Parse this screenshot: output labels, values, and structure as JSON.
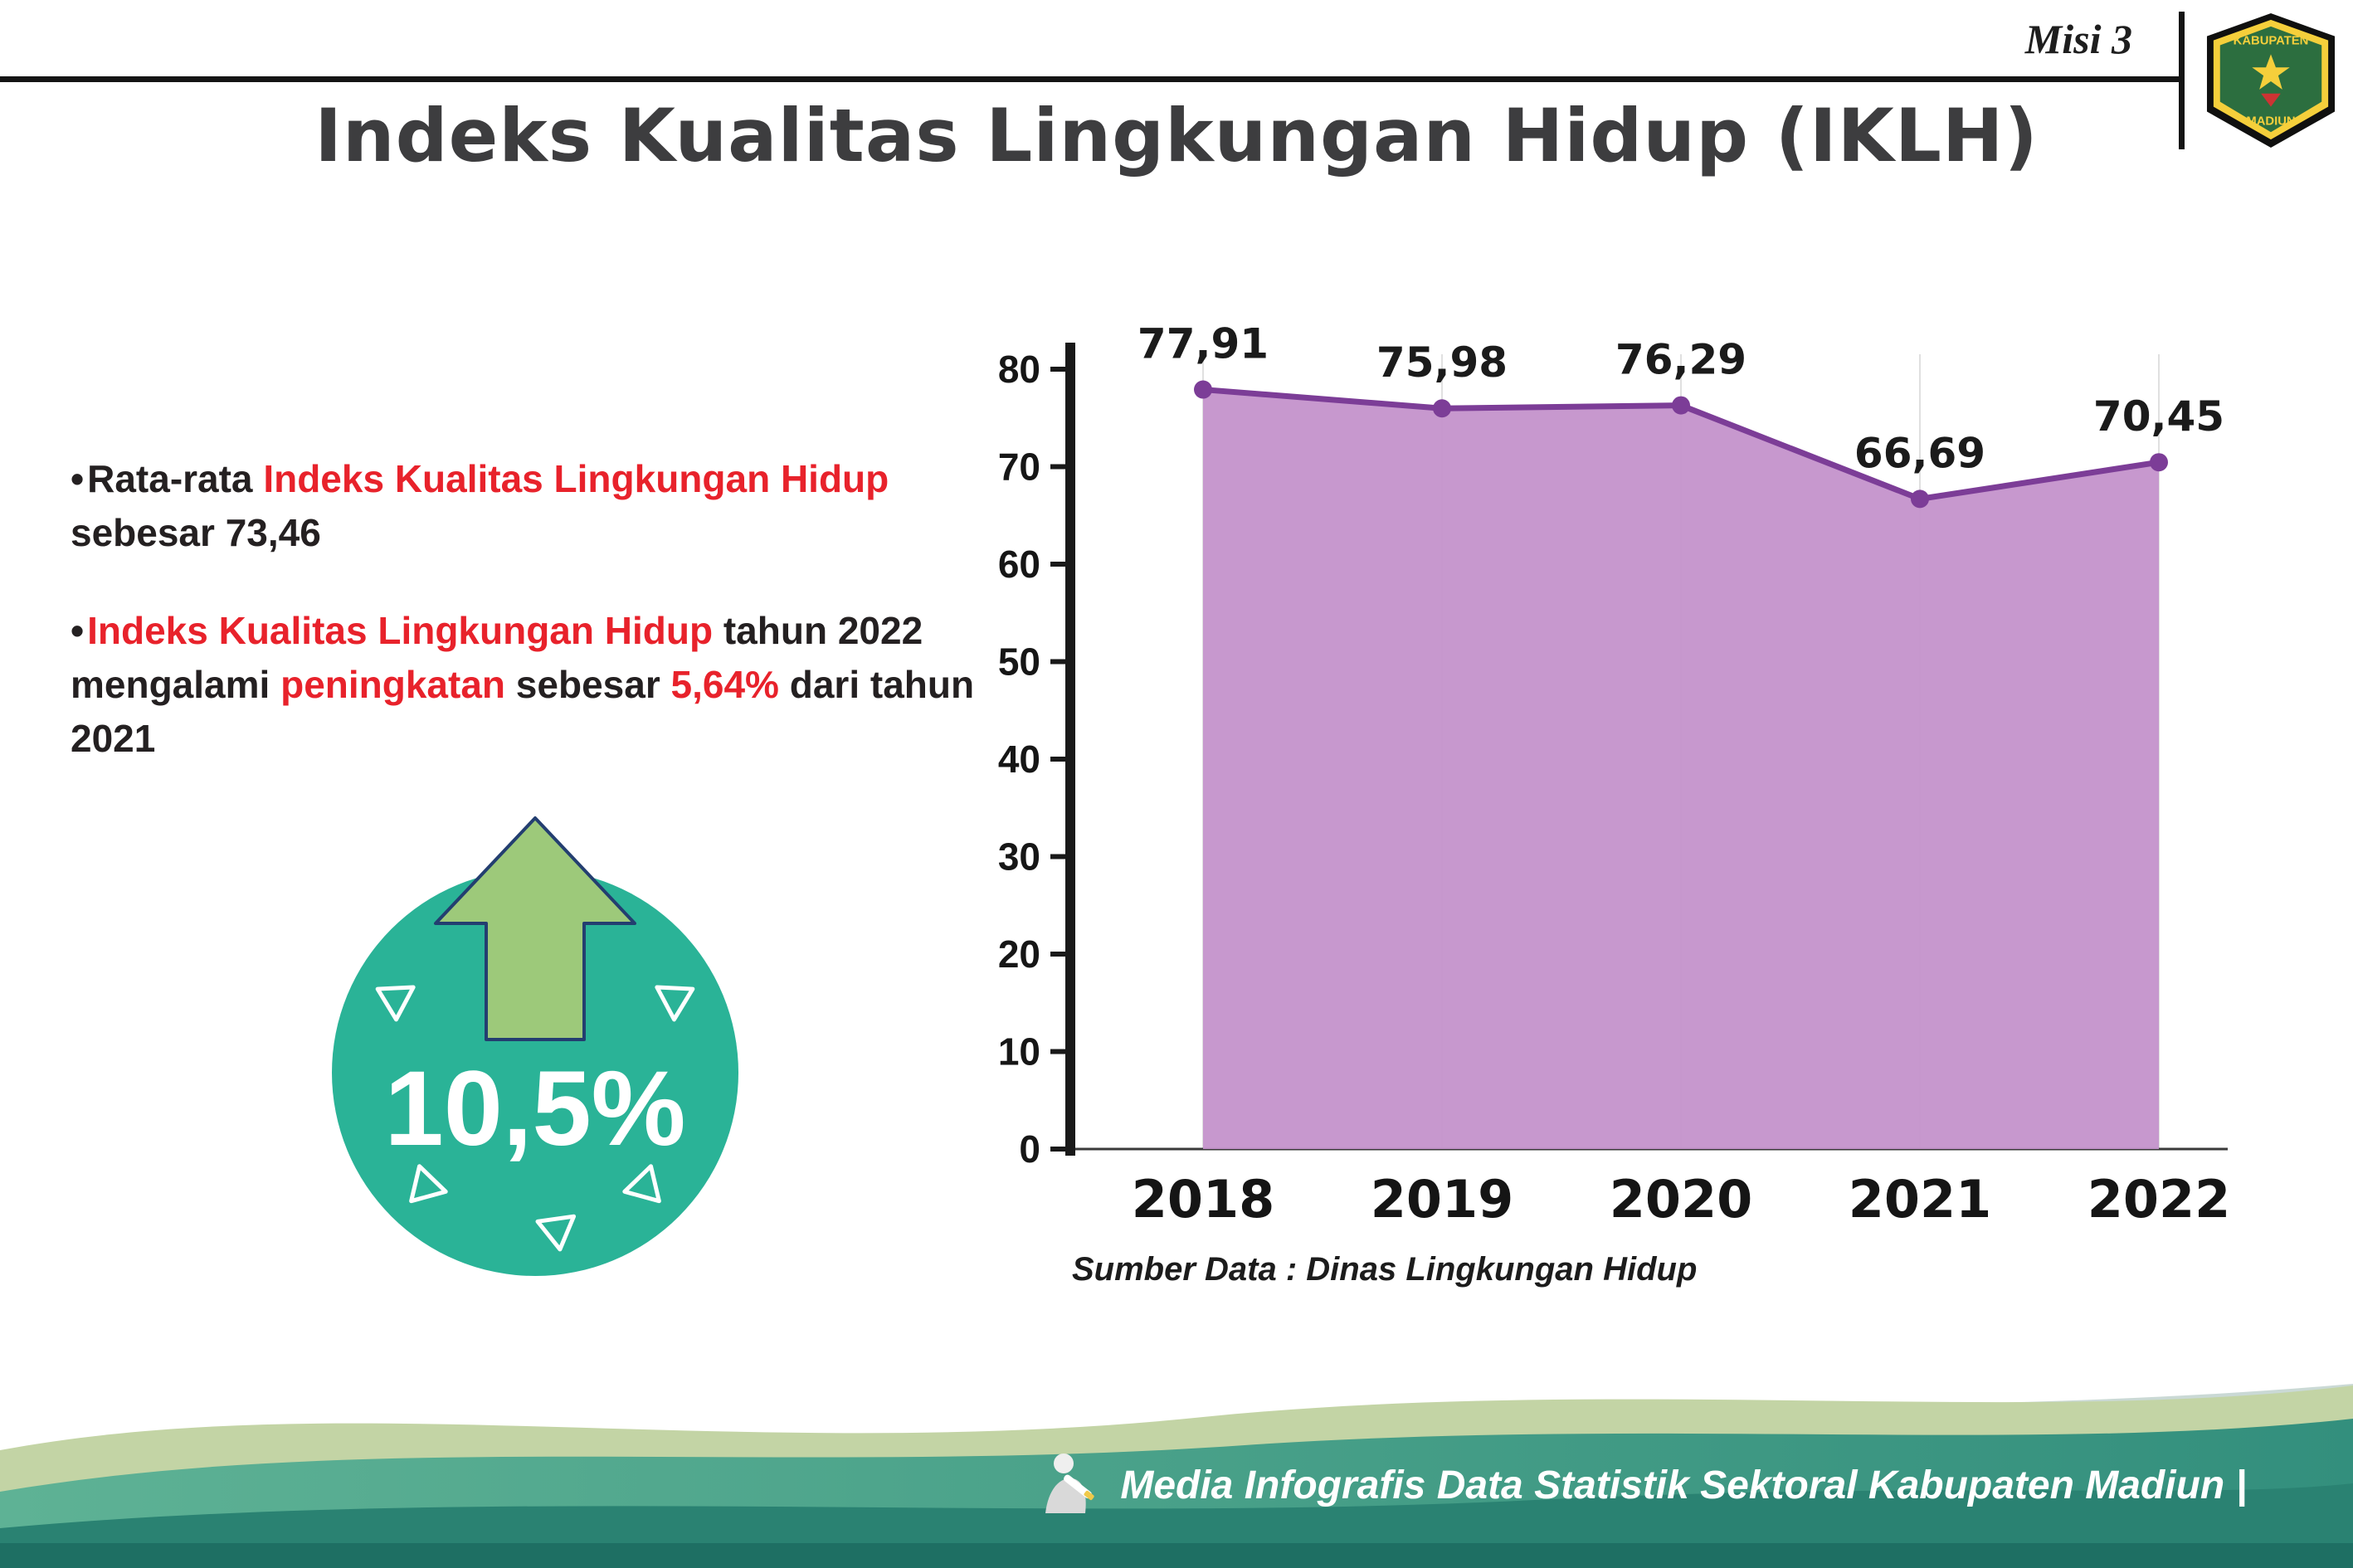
{
  "header": {
    "misi": "Misi 3",
    "logo_top": "KABUPATEN",
    "logo_bottom": "MADIUN"
  },
  "title": "Indeks Kualitas Lingkungan Hidup (IKLH)",
  "bullets": [
    {
      "segments": [
        {
          "text": "Rata-rata ",
          "color": "dark"
        },
        {
          "text": "Indeks Kualitas Lingkungan Hidup",
          "color": "red"
        },
        {
          "text": " sebesar 73,46",
          "color": "dark"
        }
      ]
    },
    {
      "segments": [
        {
          "text": "Indeks Kualitas Lingkungan Hidup",
          "color": "red"
        },
        {
          "text": " tahun 2022 mengalami ",
          "color": "dark"
        },
        {
          "text": "peningkatan",
          "color": "red"
        },
        {
          "text": " sebesar ",
          "color": "dark"
        },
        {
          "text": "5,64%",
          "color": "red"
        },
        {
          "text": " dari tahun 2021",
          "color": "dark"
        }
      ]
    }
  ],
  "badge": {
    "value": "10,5%",
    "circle_color": "#2ab397",
    "arrow_color": "#9dc97a"
  },
  "chart_data": {
    "type": "area",
    "categories": [
      "2018",
      "2019",
      "2020",
      "2021",
      "2022"
    ],
    "values": [
      77.91,
      75.98,
      76.29,
      66.69,
      70.45
    ],
    "labels": [
      "77,91",
      "75,98",
      "76,29",
      "66,69",
      "70,45"
    ],
    "title": "",
    "xlabel": "",
    "ylabel": "",
    "ylim": [
      0,
      80
    ],
    "ytick_step": 10,
    "grid": "vertical-light",
    "legend": "none",
    "colors": {
      "area": "#c492cb",
      "line": "#7c3d97"
    },
    "source": "Sumber Data : Dinas Lingkungan Hidup"
  },
  "footer": {
    "text": "Media Infografis Data Statistik Sektoral Kabupaten Madiun |"
  },
  "accent_colors": {
    "red_text": "#e8222b",
    "footer_teal": "#3f9c87",
    "footer_sage": "#c3d4a5",
    "footer_deep": "#1e6f63"
  }
}
